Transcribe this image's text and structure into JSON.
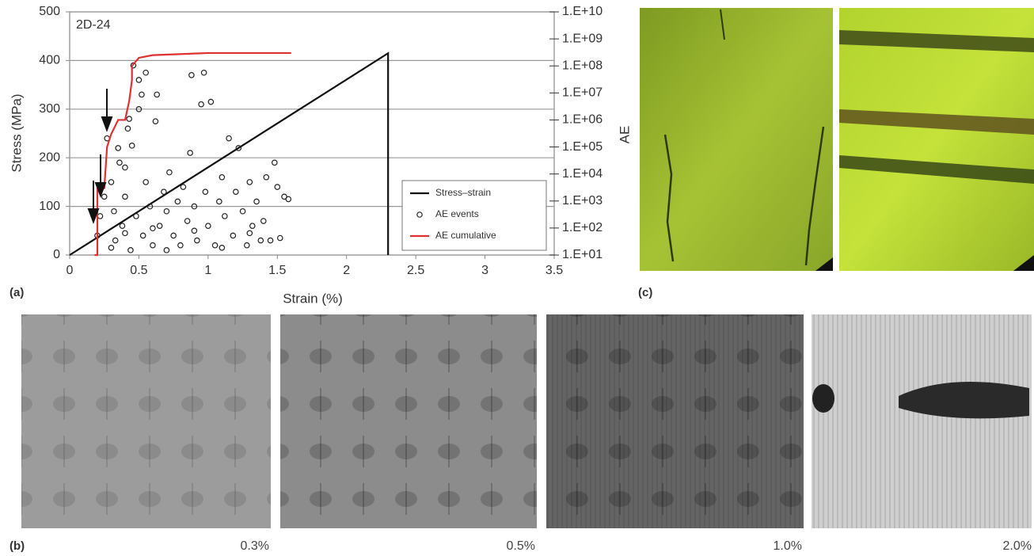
{
  "chart_data": {
    "type": "line",
    "annotation": "2D-24",
    "xlabel": "Strain (%)",
    "ylabel": "Stress (MPa)",
    "y2label": "AE",
    "xlim": [
      0,
      3.5
    ],
    "xticks": [
      0,
      0.5,
      1,
      1.5,
      2,
      2.5,
      3,
      3.5
    ],
    "ylim": [
      0,
      500
    ],
    "yticks": [
      0,
      100,
      200,
      300,
      400,
      500
    ],
    "y2lim": [
      10,
      10000000000
    ],
    "y2scale": "log",
    "y2ticks": [
      {
        "value": 10,
        "label": "1.E+01"
      },
      {
        "value": 100,
        "label": "1.E+02"
      },
      {
        "value": 1000,
        "label": "1.E+03"
      },
      {
        "value": 10000,
        "label": "1.E+04"
      },
      {
        "value": 100000,
        "label": "1.E+05"
      },
      {
        "value": 1000000,
        "label": "1.E+06"
      },
      {
        "value": 10000000,
        "label": "1.E+07"
      },
      {
        "value": 100000000,
        "label": "1.E+08"
      },
      {
        "value": 1000000000,
        "label": "1.E+09"
      },
      {
        "value": 10000000000,
        "label": "1.E+10"
      }
    ],
    "grid": true,
    "legend": "lower right",
    "series": [
      {
        "name": "Stress–strain",
        "type": "line",
        "color": "#111111",
        "x": [
          0,
          2.3,
          2.3
        ],
        "values": [
          0,
          415,
          0
        ]
      },
      {
        "name": "AE events",
        "type": "scatter",
        "color": "#222222",
        "x": [
          0.2,
          0.22,
          0.25,
          0.27,
          0.3,
          0.32,
          0.33,
          0.35,
          0.36,
          0.38,
          0.4,
          0.4,
          0.42,
          0.43,
          0.44,
          0.45,
          0.46,
          0.48,
          0.5,
          0.5,
          0.52,
          0.53,
          0.55,
          0.55,
          0.58,
          0.6,
          0.62,
          0.63,
          0.65,
          0.68,
          0.7,
          0.72,
          0.75,
          0.78,
          0.8,
          0.82,
          0.85,
          0.87,
          0.88,
          0.9,
          0.92,
          0.95,
          0.97,
          0.98,
          1.0,
          1.02,
          1.05,
          1.08,
          1.1,
          1.12,
          1.15,
          1.18,
          1.2,
          1.22,
          1.25,
          1.28,
          1.3,
          1.32,
          1.35,
          1.38,
          1.4,
          1.42,
          1.45,
          1.48,
          1.5,
          1.52,
          1.55,
          1.58,
          0.3,
          0.4,
          0.6,
          0.7,
          0.9,
          1.1,
          1.3
        ],
        "values": [
          40,
          80,
          120,
          240,
          150,
          90,
          30,
          220,
          190,
          60,
          120,
          180,
          260,
          280,
          10,
          225,
          390,
          80,
          360,
          300,
          330,
          40,
          375,
          150,
          100,
          20,
          275,
          330,
          60,
          130,
          90,
          170,
          40,
          110,
          20,
          140,
          70,
          210,
          370,
          100,
          30,
          310,
          375,
          130,
          60,
          315,
          20,
          110,
          160,
          80,
          240,
          40,
          130,
          220,
          90,
          20,
          150,
          60,
          110,
          30,
          70,
          160,
          30,
          190,
          140,
          35,
          120,
          115,
          15,
          45,
          55,
          10,
          50,
          15,
          45
        ]
      },
      {
        "name": "AE cumulative",
        "type": "line",
        "axis": "y2",
        "color": "#e03030",
        "x": [
          0.18,
          0.2,
          0.2,
          0.25,
          0.27,
          0.3,
          0.35,
          0.4,
          0.43,
          0.45,
          0.45,
          0.5,
          0.6,
          1.0,
          1.6
        ],
        "values": [
          10,
          10,
          3000,
          3000,
          100000,
          300000,
          1000000,
          1000000,
          5000000,
          30000000,
          100000000,
          200000000,
          250000000,
          300000000,
          300000000
        ]
      }
    ]
  },
  "figure": {
    "panel_labels": [
      "(a)",
      "(b)",
      "(c)"
    ],
    "image_captions": [
      "0.3%",
      "0.5%",
      "1.0%",
      "2.0%"
    ]
  }
}
